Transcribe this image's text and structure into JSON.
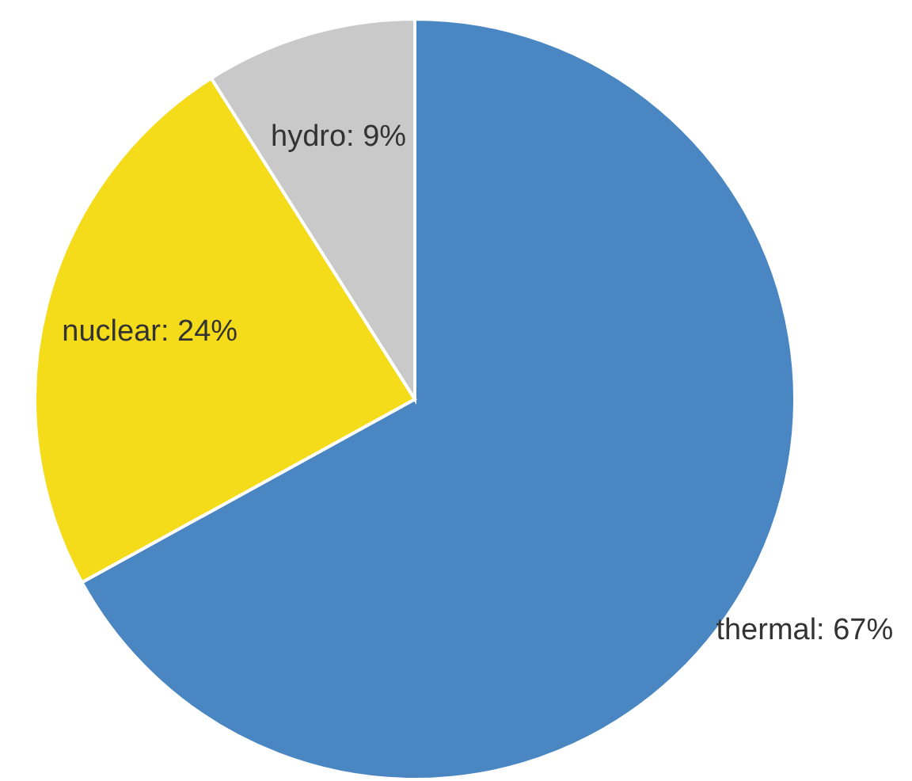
{
  "chart_data": {
    "type": "pie",
    "categories": [
      "thermal",
      "nuclear",
      "hydro"
    ],
    "values": [
      67,
      24,
      9
    ],
    "colors": [
      "#4a87c2",
      "#f5dc1a",
      "#c9c9c9"
    ],
    "value_labels": [
      "67%",
      "24%",
      "9%"
    ]
  }
}
